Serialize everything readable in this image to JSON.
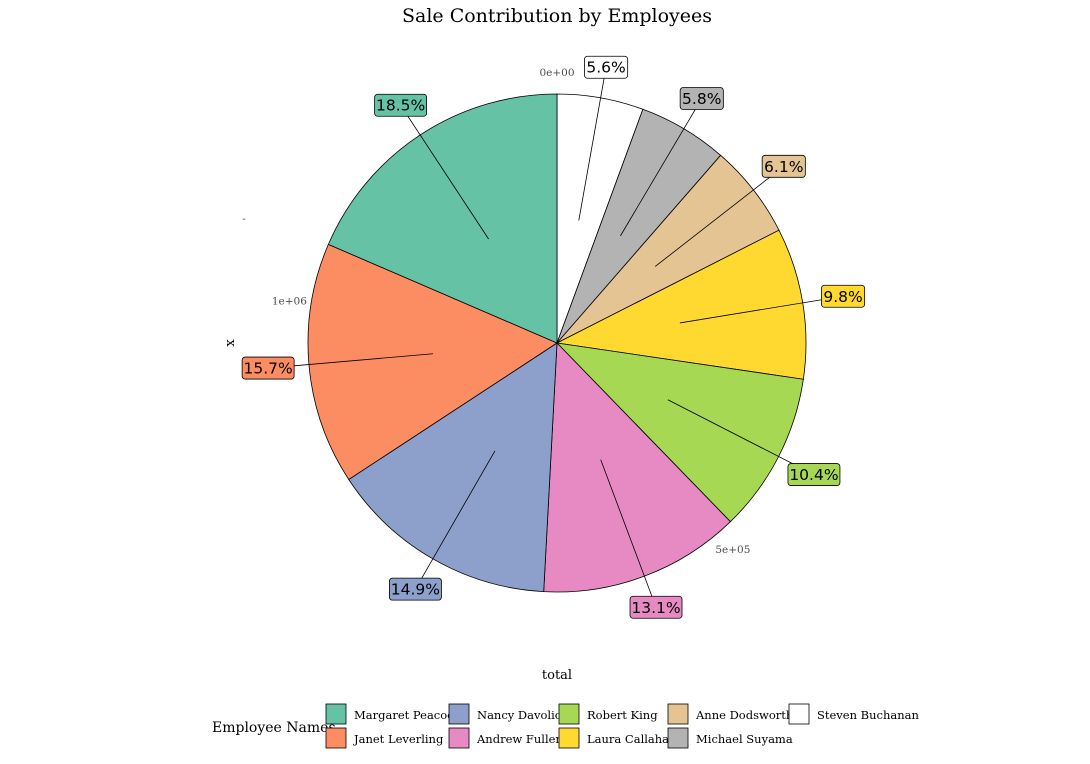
{
  "chart_data": {
    "type": "pie",
    "title": "Sale Contribution by Employees",
    "xlabel": "total",
    "ylabel": "x",
    "y_tick": "-",
    "radial_ticks": [
      {
        "value": 0,
        "label": "0e+00"
      },
      {
        "value": 500000,
        "label": "5e+05"
      },
      {
        "value": 1000000,
        "label": "1e+06"
      }
    ],
    "axis_total": 1290000,
    "legend_title": "Employee Names",
    "legend_placement": "bottom",
    "slices": [
      {
        "name": "Steven Buchanan",
        "value": 5.6,
        "label": "5.6%",
        "color": "#FFFFFF"
      },
      {
        "name": "Michael Suyama",
        "value": 5.8,
        "label": "5.8%",
        "color": "#B3B3B3"
      },
      {
        "name": "Anne Dodsworth",
        "value": 6.1,
        "label": "6.1%",
        "color": "#E5C494"
      },
      {
        "name": "Laura Callahan",
        "value": 9.8,
        "label": "9.8%",
        "color": "#FFD92F"
      },
      {
        "name": "Robert King",
        "value": 10.4,
        "label": "10.4%",
        "color": "#A6D854"
      },
      {
        "name": "Andrew Fuller",
        "value": 13.1,
        "label": "13.1%",
        "color": "#E78AC3"
      },
      {
        "name": "Nancy Davolio",
        "value": 14.9,
        "label": "14.9%",
        "color": "#8DA0CB"
      },
      {
        "name": "Janet Leverling",
        "value": 15.7,
        "label": "15.7%",
        "color": "#FC8D62"
      },
      {
        "name": "Margaret Peacock",
        "value": 18.5,
        "label": "18.5%",
        "color": "#66C2A5"
      }
    ],
    "legend_order": [
      "Margaret Peacock",
      "Janet Leverling",
      "Nancy Davolio",
      "Andrew Fuller",
      "Robert King",
      "Laura Callahan",
      "Anne Dodsworth",
      "Michael Suyama",
      "Steven Buchanan"
    ]
  }
}
